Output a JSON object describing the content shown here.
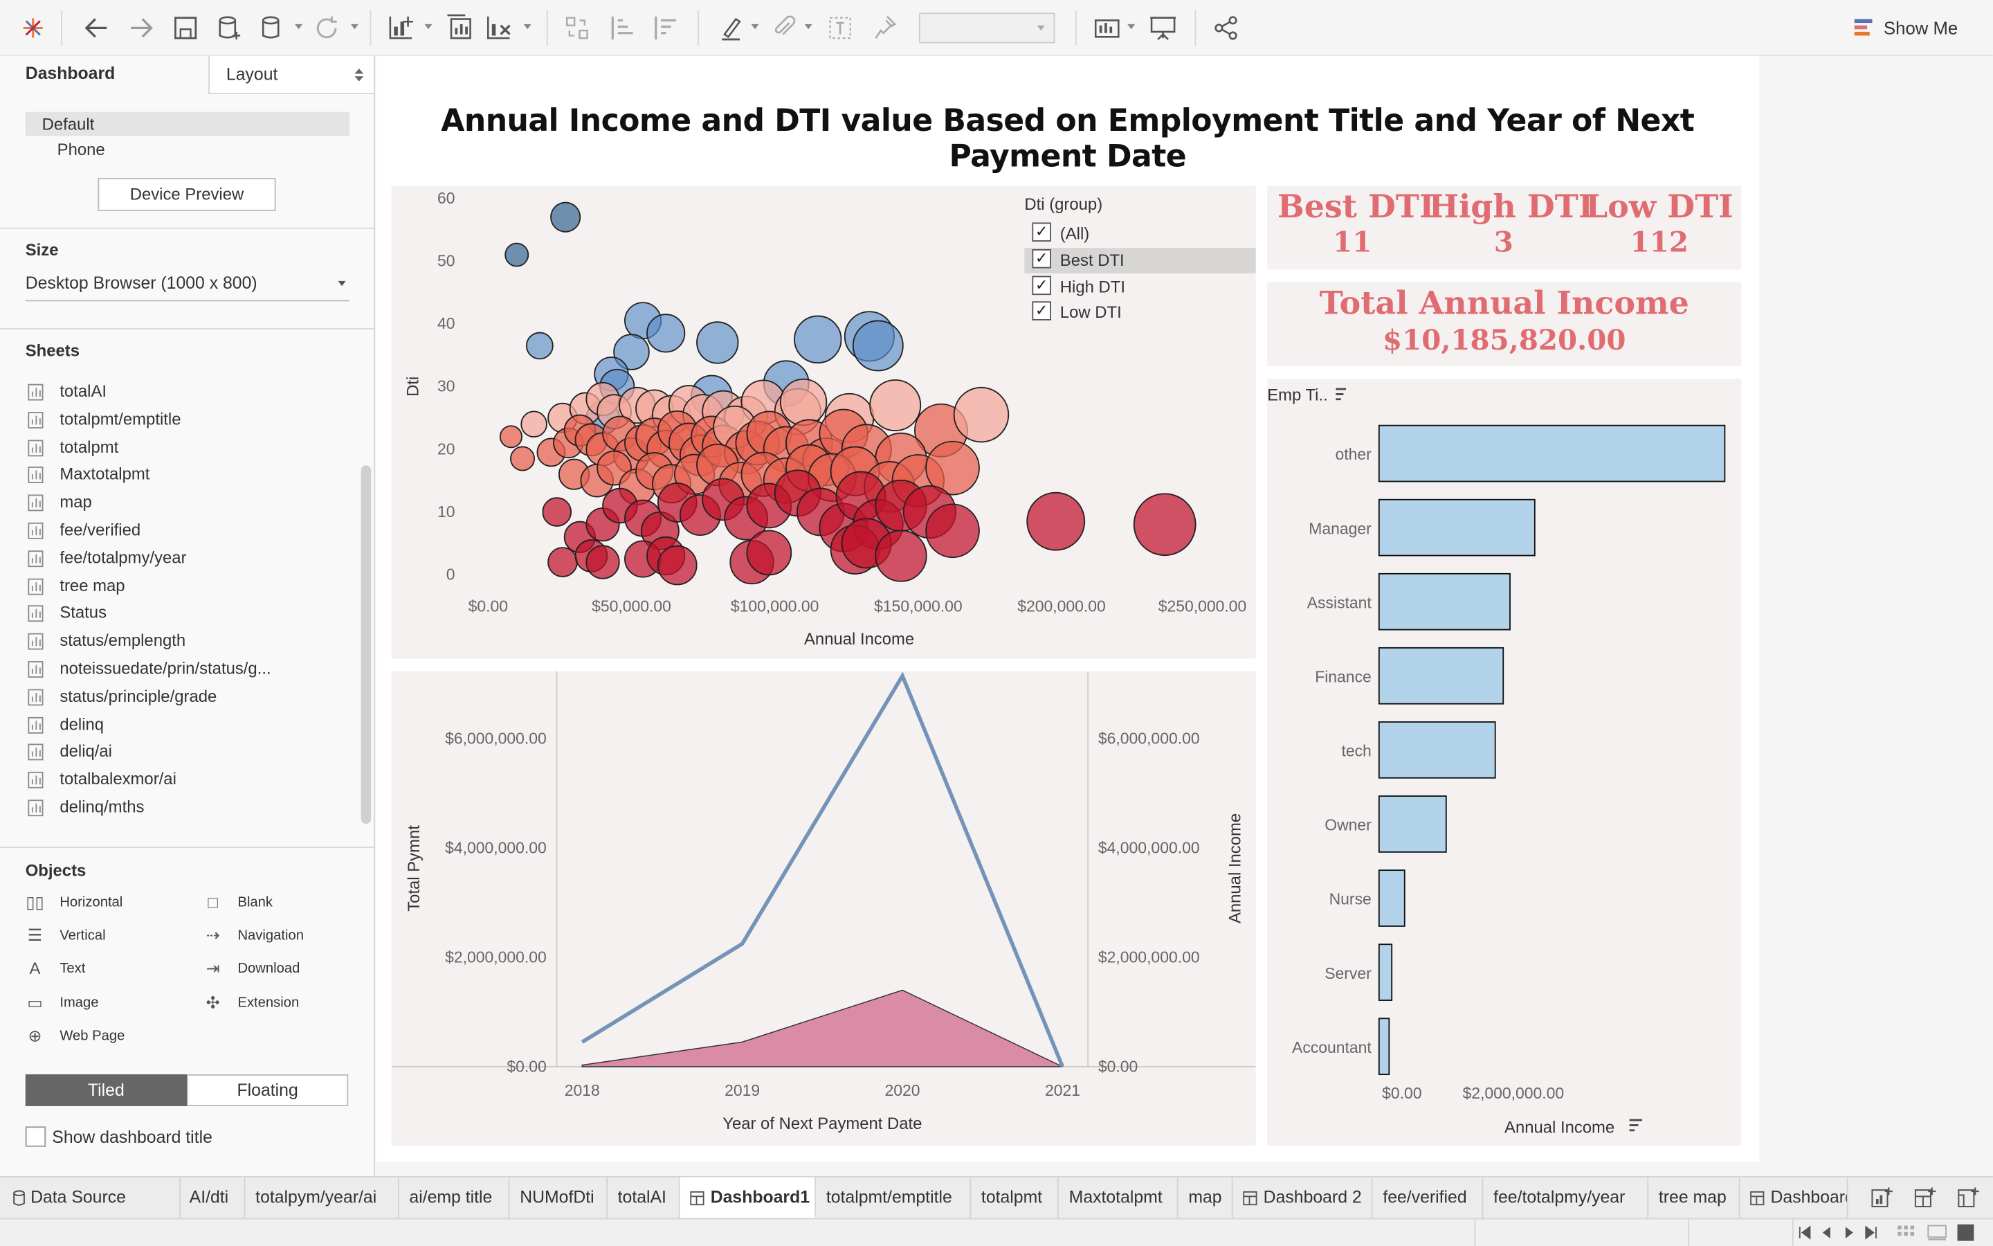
{
  "toolbar": {
    "show_me_label": "Show Me"
  },
  "left_panel": {
    "dashboard_tab": "Dashboard",
    "layout_tab": "Layout",
    "device_default": "Default",
    "device_phone": "Phone",
    "device_preview_button": "Device Preview",
    "size_title": "Size",
    "size_value": "Desktop Browser (1000 x 800)",
    "sheets_title": "Sheets",
    "sheets": [
      "totalAI",
      "totalpmt/emptitle",
      "totalpmt",
      "Maxtotalpmt",
      "map",
      "fee/verified",
      "fee/totalpmy/year",
      "tree map",
      "Status",
      "status/emplength",
      "noteissuedate/prin/status/g...",
      "status/principle/grade",
      "delinq",
      "deliq/ai",
      "totalbalexmor/ai",
      "delinq/mths"
    ],
    "objects_title": "Objects",
    "objects_left": [
      "Horizontal",
      "Vertical",
      "Text",
      "Image",
      "Web Page"
    ],
    "objects_right": [
      "Blank",
      "Navigation",
      "Download",
      "Extension"
    ],
    "tiled_label": "Tiled",
    "floating_label": "Floating",
    "show_title_label": "Show dashboard title"
  },
  "dashboard": {
    "title": "Annual Income and DTI value Based on Employment Title and Year of Next Payment Date",
    "kpis": {
      "best_label": "Best DTI",
      "best_value": "11",
      "high_label": "High DTI",
      "high_value": "3",
      "low_label": "Low DTI",
      "low_value": "112",
      "total_label": "Total Annual Income",
      "total_value": "$10,185,820.00"
    },
    "filter": {
      "title": "Dti (group)",
      "options": [
        "(All)",
        "Best DTI",
        "High DTI",
        "Low DTI"
      ],
      "selected_highlight": "Best DTI"
    },
    "bar_header": "Emp Ti..",
    "colors": {
      "best": "#5b8ec7",
      "low_light": "#f4a89a",
      "low_mid": "#e8604f",
      "low_dark": "#c0142d",
      "high": "#3b6a96",
      "bar": "#b3d3ea",
      "line": "#7493b8",
      "area": "#d57a9a",
      "kpi": "#e06c72",
      "panel_bg": "#f4f1f0"
    }
  },
  "chart_data": [
    {
      "type": "scatter",
      "title": "",
      "xlabel": "Annual Income",
      "ylabel": "Dti",
      "x_ticks": [
        "$0.00",
        "$50,000.00",
        "$100,000.00",
        "$150,000.00",
        "$200,000.00",
        "$250,000.00"
      ],
      "y_ticks": [
        "0",
        "10",
        "20",
        "30",
        "40",
        "50",
        "60"
      ],
      "xlim": [
        0,
        250000
      ],
      "ylim": [
        0,
        60
      ],
      "points": [
        {
          "x": 27000,
          "y": 57,
          "group": "high"
        },
        {
          "x": 10000,
          "y": 51,
          "group": "high"
        },
        {
          "x": 18000,
          "y": 36.5,
          "group": "best"
        },
        {
          "x": 54000,
          "y": 40.5,
          "group": "best"
        },
        {
          "x": 62000,
          "y": 38.5,
          "group": "best"
        },
        {
          "x": 80000,
          "y": 37,
          "group": "best"
        },
        {
          "x": 115000,
          "y": 37.5,
          "group": "best"
        },
        {
          "x": 133000,
          "y": 38,
          "group": "best"
        },
        {
          "x": 136000,
          "y": 36.5,
          "group": "best"
        },
        {
          "x": 50000,
          "y": 35.5,
          "group": "best"
        },
        {
          "x": 43000,
          "y": 32,
          "group": "best"
        },
        {
          "x": 45000,
          "y": 30,
          "group": "best"
        },
        {
          "x": 104000,
          "y": 30.5,
          "group": "best"
        },
        {
          "x": 78000,
          "y": 28.5,
          "group": "best"
        },
        {
          "x": 40000,
          "y": 25,
          "group": "best"
        },
        {
          "x": 26000,
          "y": 25,
          "group": "low"
        },
        {
          "x": 34000,
          "y": 26.5,
          "group": "low"
        },
        {
          "x": 40000,
          "y": 28,
          "group": "low"
        },
        {
          "x": 44000,
          "y": 26,
          "group": "low"
        },
        {
          "x": 52000,
          "y": 27,
          "group": "low"
        },
        {
          "x": 58000,
          "y": 26.5,
          "group": "low"
        },
        {
          "x": 64000,
          "y": 25.5,
          "group": "low"
        },
        {
          "x": 70000,
          "y": 27,
          "group": "low"
        },
        {
          "x": 75000,
          "y": 25.5,
          "group": "low"
        },
        {
          "x": 82000,
          "y": 26,
          "group": "low"
        },
        {
          "x": 90000,
          "y": 25,
          "group": "low"
        },
        {
          "x": 96000,
          "y": 27.5,
          "group": "low"
        },
        {
          "x": 108000,
          "y": 26,
          "group": "low"
        },
        {
          "x": 110000,
          "y": 27.5,
          "group": "low"
        },
        {
          "x": 126000,
          "y": 25,
          "group": "low"
        },
        {
          "x": 142000,
          "y": 27,
          "group": "low"
        },
        {
          "x": 158000,
          "y": 23,
          "group": "low"
        },
        {
          "x": 172000,
          "y": 25.5,
          "group": "low"
        },
        {
          "x": 8000,
          "y": 22,
          "group": "low"
        },
        {
          "x": 12000,
          "y": 18.5,
          "group": "low"
        },
        {
          "x": 16000,
          "y": 24,
          "group": "low"
        },
        {
          "x": 22000,
          "y": 19.5,
          "group": "low"
        },
        {
          "x": 28000,
          "y": 21,
          "group": "low"
        },
        {
          "x": 32000,
          "y": 23,
          "group": "low"
        },
        {
          "x": 36000,
          "y": 21.5,
          "group": "low"
        },
        {
          "x": 40000,
          "y": 20,
          "group": "low"
        },
        {
          "x": 46000,
          "y": 22.5,
          "group": "low"
        },
        {
          "x": 50000,
          "y": 19,
          "group": "low"
        },
        {
          "x": 54000,
          "y": 21,
          "group": "low"
        },
        {
          "x": 58000,
          "y": 22,
          "group": "low"
        },
        {
          "x": 62000,
          "y": 20,
          "group": "low"
        },
        {
          "x": 66000,
          "y": 23,
          "group": "low"
        },
        {
          "x": 70000,
          "y": 21,
          "group": "low"
        },
        {
          "x": 74000,
          "y": 19,
          "group": "low"
        },
        {
          "x": 78000,
          "y": 22,
          "group": "low"
        },
        {
          "x": 82000,
          "y": 20.5,
          "group": "low"
        },
        {
          "x": 86000,
          "y": 23.5,
          "group": "low"
        },
        {
          "x": 90000,
          "y": 19.5,
          "group": "low"
        },
        {
          "x": 94000,
          "y": 21,
          "group": "low"
        },
        {
          "x": 98000,
          "y": 22.5,
          "group": "low"
        },
        {
          "x": 104000,
          "y": 20,
          "group": "low"
        },
        {
          "x": 112000,
          "y": 21,
          "group": "low"
        },
        {
          "x": 118000,
          "y": 18,
          "group": "low"
        },
        {
          "x": 124000,
          "y": 22.5,
          "group": "low"
        },
        {
          "x": 132000,
          "y": 20,
          "group": "low"
        },
        {
          "x": 144000,
          "y": 18.5,
          "group": "low"
        },
        {
          "x": 30000,
          "y": 16,
          "group": "low"
        },
        {
          "x": 38000,
          "y": 15,
          "group": "low"
        },
        {
          "x": 44000,
          "y": 17,
          "group": "low"
        },
        {
          "x": 52000,
          "y": 14,
          "group": "low"
        },
        {
          "x": 58000,
          "y": 16.5,
          "group": "low"
        },
        {
          "x": 64000,
          "y": 14.5,
          "group": "low"
        },
        {
          "x": 72000,
          "y": 16,
          "group": "low"
        },
        {
          "x": 80000,
          "y": 17.5,
          "group": "low"
        },
        {
          "x": 88000,
          "y": 14.5,
          "group": "low"
        },
        {
          "x": 96000,
          "y": 16,
          "group": "low"
        },
        {
          "x": 104000,
          "y": 15,
          "group": "low"
        },
        {
          "x": 112000,
          "y": 17,
          "group": "low"
        },
        {
          "x": 120000,
          "y": 15.5,
          "group": "low"
        },
        {
          "x": 128000,
          "y": 16.5,
          "group": "low"
        },
        {
          "x": 140000,
          "y": 14,
          "group": "low"
        },
        {
          "x": 150000,
          "y": 15,
          "group": "low"
        },
        {
          "x": 162000,
          "y": 17,
          "group": "low"
        },
        {
          "x": 24000,
          "y": 10,
          "group": "low"
        },
        {
          "x": 32000,
          "y": 6,
          "group": "low"
        },
        {
          "x": 40000,
          "y": 8,
          "group": "low"
        },
        {
          "x": 46000,
          "y": 11,
          "group": "low"
        },
        {
          "x": 54000,
          "y": 9,
          "group": "low"
        },
        {
          "x": 60000,
          "y": 7,
          "group": "low"
        },
        {
          "x": 66000,
          "y": 11.5,
          "group": "low"
        },
        {
          "x": 74000,
          "y": 9.5,
          "group": "low"
        },
        {
          "x": 82000,
          "y": 12,
          "group": "low"
        },
        {
          "x": 90000,
          "y": 9,
          "group": "low"
        },
        {
          "x": 98000,
          "y": 11,
          "group": "low"
        },
        {
          "x": 108000,
          "y": 13,
          "group": "low"
        },
        {
          "x": 116000,
          "y": 10,
          "group": "low"
        },
        {
          "x": 124000,
          "y": 7.5,
          "group": "low"
        },
        {
          "x": 130000,
          "y": 12.5,
          "group": "low"
        },
        {
          "x": 136000,
          "y": 8,
          "group": "low"
        },
        {
          "x": 144000,
          "y": 11,
          "group": "low"
        },
        {
          "x": 154000,
          "y": 10,
          "group": "low"
        },
        {
          "x": 162000,
          "y": 7,
          "group": "low"
        },
        {
          "x": 198000,
          "y": 8.5,
          "group": "low"
        },
        {
          "x": 236000,
          "y": 8,
          "group": "low"
        },
        {
          "x": 26000,
          "y": 2,
          "group": "low"
        },
        {
          "x": 36000,
          "y": 3,
          "group": "low"
        },
        {
          "x": 40000,
          "y": 2,
          "group": "low"
        },
        {
          "x": 54000,
          "y": 2.5,
          "group": "low"
        },
        {
          "x": 62000,
          "y": 3,
          "group": "low"
        },
        {
          "x": 66000,
          "y": 1.5,
          "group": "low"
        },
        {
          "x": 92000,
          "y": 2,
          "group": "low"
        },
        {
          "x": 98000,
          "y": 3.5,
          "group": "low"
        },
        {
          "x": 128000,
          "y": 4,
          "group": "low"
        },
        {
          "x": 132000,
          "y": 5,
          "group": "low"
        },
        {
          "x": 144000,
          "y": 3,
          "group": "low"
        }
      ],
      "legend": [
        "(All)",
        "Best DTI",
        "High DTI",
        "Low DTI"
      ]
    },
    {
      "type": "line",
      "title": "",
      "xlabel": "Year of Next Payment Date",
      "ylabel": "Total Pymnt",
      "y2label": "Annual Income",
      "categories": [
        "2018",
        "2019",
        "2020",
        "2021"
      ],
      "y_ticks": [
        "$0.00",
        "$2,000,000.00",
        "$4,000,000.00",
        "$6,000,000.00"
      ],
      "y2_ticks": [
        "$0.00",
        "$2,000,000.00",
        "$4,000,000.00",
        "$6,000,000.00"
      ],
      "ylim": [
        0,
        7000000
      ],
      "series": [
        {
          "name": "Total Pymnt",
          "type": "line",
          "values": [
            450000,
            2250000,
            7150000,
            0
          ]
        },
        {
          "name": "Annual Income",
          "type": "area",
          "values": [
            30000,
            450000,
            1400000,
            0
          ]
        }
      ]
    },
    {
      "type": "bar",
      "title": "",
      "xlabel": "Annual Income",
      "ylabel": "Emp Ti..",
      "categories": [
        "other",
        "Manager",
        "Assistant",
        "Finance",
        "tech",
        "Owner",
        "Nurse",
        "Server",
        "Accountant"
      ],
      "values": [
        5150000,
        2320000,
        1950000,
        1850000,
        1730000,
        1000000,
        380000,
        190000,
        150000
      ],
      "x_ticks": [
        "$0.00",
        "$2,000,000.00"
      ],
      "xlim": [
        0,
        5150000
      ]
    }
  ],
  "tabs": {
    "data_source": "Data Source",
    "items": [
      "AI/dti",
      "totalpym/year/ai",
      "ai/emp title",
      "NUMofDti",
      "totalAI",
      "Dashboard1",
      "totalpmt/emptitle",
      "totalpmt",
      "Maxtotalpmt",
      "map",
      "Dashboard 2",
      "fee/verified",
      "fee/totalpmy/year",
      "tree map",
      "Dashboard"
    ],
    "active": "Dashboard1"
  }
}
